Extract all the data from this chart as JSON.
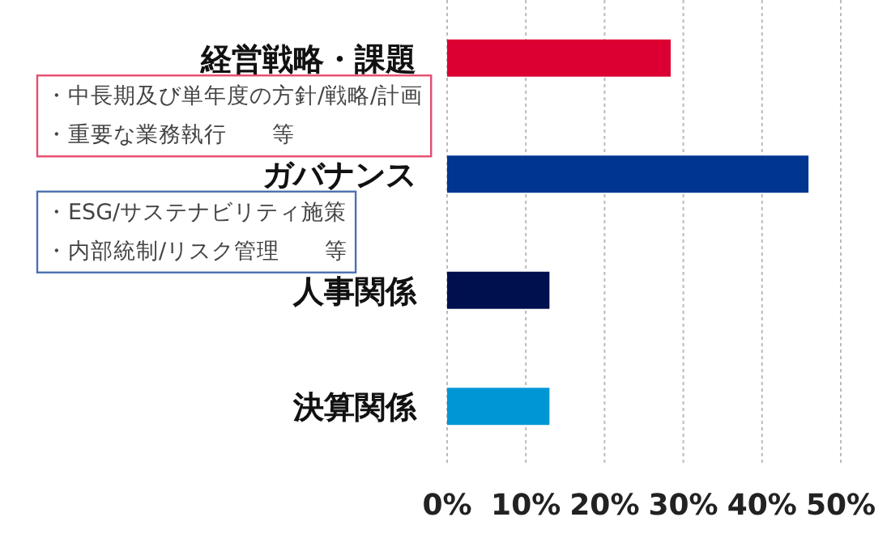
{
  "chart_data": {
    "type": "bar",
    "orientation": "horizontal",
    "categories": [
      "経営戦略・課題",
      "ガバナンス",
      "人事関係",
      "決算関係"
    ],
    "values": [
      28.4,
      45.9,
      13.0,
      13.0
    ],
    "colors": [
      "#dc0032",
      "#003591",
      "#00104f",
      "#0096d6"
    ],
    "xlim": [
      0,
      50
    ],
    "xticks": [
      {
        "value": 0,
        "label": "0%"
      },
      {
        "value": 10,
        "label": "10%"
      },
      {
        "value": 20,
        "label": "20%"
      },
      {
        "value": 30,
        "label": "30%"
      },
      {
        "value": 40,
        "label": "40%"
      },
      {
        "value": 50,
        "label": "50%"
      }
    ],
    "grid": "x",
    "annotations": [
      "・中長期及び単年度の方針/戦略/計画",
      "・重要な業務執行　　等",
      "・ESG/サステナビリティ施策",
      "・内部統制/リスク管理　　等"
    ]
  }
}
